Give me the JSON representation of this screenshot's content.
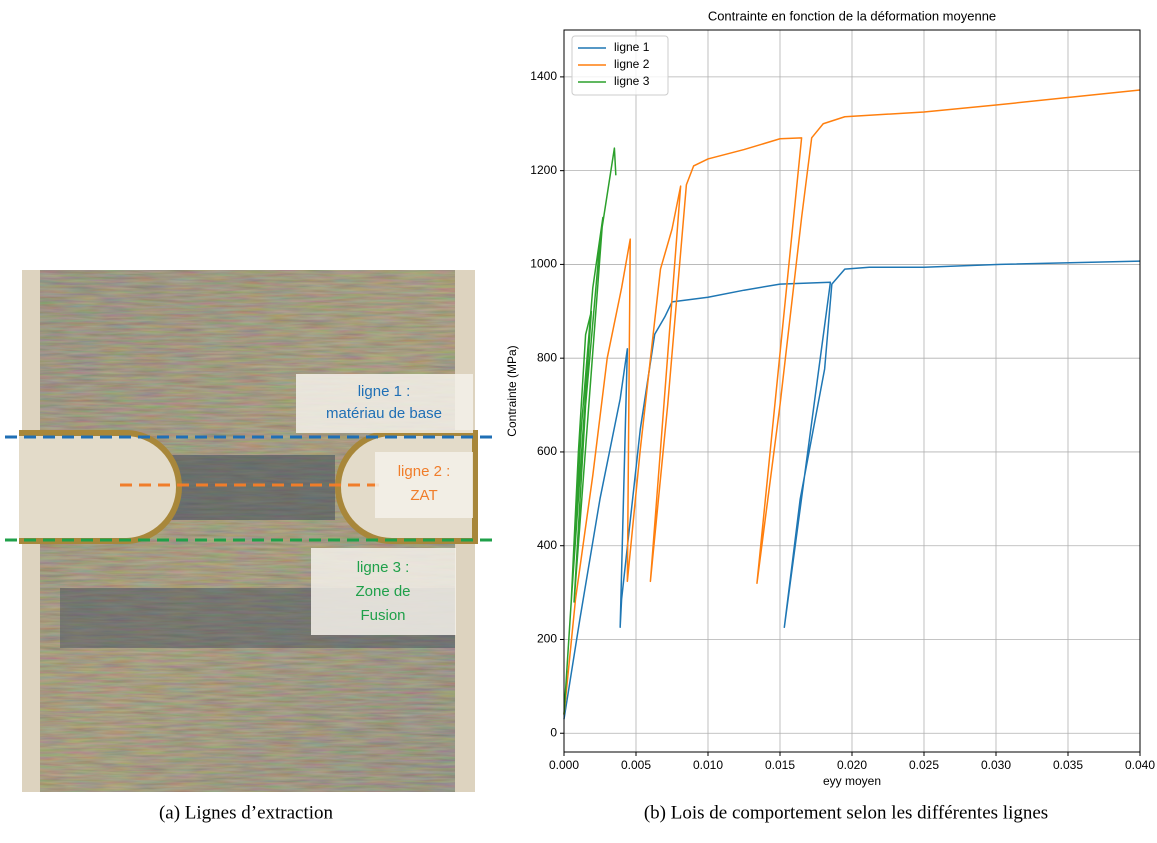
{
  "photo": {
    "labels": [
      [
        "ligne 1 :",
        "matériau de base"
      ],
      [
        "ligne 2 :",
        "ZAT"
      ],
      [
        "ligne 3 :",
        "Zone de",
        "Fusion"
      ]
    ]
  },
  "captions": [
    "(a) Lignes d’extraction",
    "(b) Lois de comportement selon les différentes lignes"
  ],
  "chart_data": {
    "type": "line",
    "title": "Contrainte en fonction de la déformation moyenne",
    "x_label": "eyy moyen",
    "y_label": "Contrainte (MPa)",
    "xlim": [
      0,
      0.04
    ],
    "ylim": [
      -40,
      1500
    ],
    "xticks": [
      {
        "value": 0,
        "label": "0.000"
      },
      {
        "value": 0.005,
        "label": "0.005"
      },
      {
        "value": 0.01,
        "label": "0.010"
      },
      {
        "value": 0.015,
        "label": "0.015"
      },
      {
        "value": 0.02,
        "label": "0.020"
      },
      {
        "value": 0.025,
        "label": "0.025"
      },
      {
        "value": 0.03,
        "label": "0.030"
      },
      {
        "value": 0.035,
        "label": "0.035"
      },
      {
        "value": 0.04,
        "label": "0.040"
      }
    ],
    "yticks": [
      0,
      200,
      400,
      600,
      800,
      1000,
      1200,
      1400
    ],
    "grid": true,
    "legend": "upper left",
    "series": [
      {
        "name": "ligne 1",
        "color": "#1f77b4",
        "x": [
          0,
          0.0011,
          0.0025,
          0.0039,
          0.0044,
          0.0039,
          0.004,
          0.0053,
          0.0063,
          0.007,
          0.0075,
          0.01,
          0.0125,
          0.015,
          0.0185,
          0.0153,
          0.0164,
          0.0181,
          0.0186,
          0.0195,
          0.0212,
          0.025,
          0.0303,
          0.04
        ],
        "values": [
          30,
          243,
          500,
          713,
          820,
          226,
          286,
          649,
          851,
          888,
          920,
          930,
          945,
          958,
          962,
          226,
          499,
          777,
          958,
          990,
          994,
          994,
          1000,
          1007
        ]
      },
      {
        "name": "ligne 2",
        "color": "#ff7f0e",
        "x": [
          0,
          0.0008,
          0.002,
          0.003,
          0.004,
          0.0046,
          0.0044,
          0.0053,
          0.0067,
          0.0075,
          0.0081,
          0.006,
          0.0072,
          0.0085,
          0.009,
          0.01,
          0.0125,
          0.015,
          0.0165,
          0.0134,
          0.015,
          0.0165,
          0.0172,
          0.018,
          0.0195,
          0.025,
          0.03,
          0.04
        ],
        "values": [
          40,
          286,
          550,
          800,
          950,
          1054,
          324,
          606,
          990,
          1075,
          1167,
          324,
          700,
          1170,
          1210,
          1225,
          1245,
          1268,
          1270,
          320,
          700,
          1100,
          1270,
          1300,
          1315,
          1325,
          1340,
          1372
        ]
      },
      {
        "name": "ligne 3",
        "color": "#2ca02c",
        "x": [
          0,
          0.0005,
          0.001,
          0.0015,
          0.0019,
          0.0005,
          0.0012,
          0.002,
          0.0027,
          0.0007,
          0.0015,
          0.0025,
          0.0035,
          0.0036
        ],
        "values": [
          40,
          280,
          600,
          850,
          900,
          280,
          650,
          950,
          1100,
          280,
          700,
          1050,
          1248,
          1190
        ]
      }
    ]
  }
}
